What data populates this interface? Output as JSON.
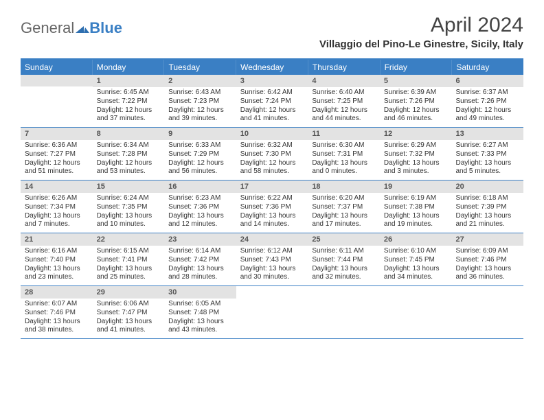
{
  "brand": {
    "part1": "General",
    "part2": "Blue"
  },
  "title": "April 2024",
  "location": "Villaggio del Pino-Le Ginestre, Sicily, Italy",
  "colors": {
    "accent": "#3a7fc4",
    "daybar": "#e3e3e3",
    "text": "#333333"
  },
  "weekdays": [
    "Sunday",
    "Monday",
    "Tuesday",
    "Wednesday",
    "Thursday",
    "Friday",
    "Saturday"
  ],
  "weeks": [
    [
      {
        "n": "",
        "sr": "",
        "ss": "",
        "dl": ""
      },
      {
        "n": "1",
        "sr": "Sunrise: 6:45 AM",
        "ss": "Sunset: 7:22 PM",
        "dl": "Daylight: 12 hours and 37 minutes."
      },
      {
        "n": "2",
        "sr": "Sunrise: 6:43 AM",
        "ss": "Sunset: 7:23 PM",
        "dl": "Daylight: 12 hours and 39 minutes."
      },
      {
        "n": "3",
        "sr": "Sunrise: 6:42 AM",
        "ss": "Sunset: 7:24 PM",
        "dl": "Daylight: 12 hours and 41 minutes."
      },
      {
        "n": "4",
        "sr": "Sunrise: 6:40 AM",
        "ss": "Sunset: 7:25 PM",
        "dl": "Daylight: 12 hours and 44 minutes."
      },
      {
        "n": "5",
        "sr": "Sunrise: 6:39 AM",
        "ss": "Sunset: 7:26 PM",
        "dl": "Daylight: 12 hours and 46 minutes."
      },
      {
        "n": "6",
        "sr": "Sunrise: 6:37 AM",
        "ss": "Sunset: 7:26 PM",
        "dl": "Daylight: 12 hours and 49 minutes."
      }
    ],
    [
      {
        "n": "7",
        "sr": "Sunrise: 6:36 AM",
        "ss": "Sunset: 7:27 PM",
        "dl": "Daylight: 12 hours and 51 minutes."
      },
      {
        "n": "8",
        "sr": "Sunrise: 6:34 AM",
        "ss": "Sunset: 7:28 PM",
        "dl": "Daylight: 12 hours and 53 minutes."
      },
      {
        "n": "9",
        "sr": "Sunrise: 6:33 AM",
        "ss": "Sunset: 7:29 PM",
        "dl": "Daylight: 12 hours and 56 minutes."
      },
      {
        "n": "10",
        "sr": "Sunrise: 6:32 AM",
        "ss": "Sunset: 7:30 PM",
        "dl": "Daylight: 12 hours and 58 minutes."
      },
      {
        "n": "11",
        "sr": "Sunrise: 6:30 AM",
        "ss": "Sunset: 7:31 PM",
        "dl": "Daylight: 13 hours and 0 minutes."
      },
      {
        "n": "12",
        "sr": "Sunrise: 6:29 AM",
        "ss": "Sunset: 7:32 PM",
        "dl": "Daylight: 13 hours and 3 minutes."
      },
      {
        "n": "13",
        "sr": "Sunrise: 6:27 AM",
        "ss": "Sunset: 7:33 PM",
        "dl": "Daylight: 13 hours and 5 minutes."
      }
    ],
    [
      {
        "n": "14",
        "sr": "Sunrise: 6:26 AM",
        "ss": "Sunset: 7:34 PM",
        "dl": "Daylight: 13 hours and 7 minutes."
      },
      {
        "n": "15",
        "sr": "Sunrise: 6:24 AM",
        "ss": "Sunset: 7:35 PM",
        "dl": "Daylight: 13 hours and 10 minutes."
      },
      {
        "n": "16",
        "sr": "Sunrise: 6:23 AM",
        "ss": "Sunset: 7:36 PM",
        "dl": "Daylight: 13 hours and 12 minutes."
      },
      {
        "n": "17",
        "sr": "Sunrise: 6:22 AM",
        "ss": "Sunset: 7:36 PM",
        "dl": "Daylight: 13 hours and 14 minutes."
      },
      {
        "n": "18",
        "sr": "Sunrise: 6:20 AM",
        "ss": "Sunset: 7:37 PM",
        "dl": "Daylight: 13 hours and 17 minutes."
      },
      {
        "n": "19",
        "sr": "Sunrise: 6:19 AM",
        "ss": "Sunset: 7:38 PM",
        "dl": "Daylight: 13 hours and 19 minutes."
      },
      {
        "n": "20",
        "sr": "Sunrise: 6:18 AM",
        "ss": "Sunset: 7:39 PM",
        "dl": "Daylight: 13 hours and 21 minutes."
      }
    ],
    [
      {
        "n": "21",
        "sr": "Sunrise: 6:16 AM",
        "ss": "Sunset: 7:40 PM",
        "dl": "Daylight: 13 hours and 23 minutes."
      },
      {
        "n": "22",
        "sr": "Sunrise: 6:15 AM",
        "ss": "Sunset: 7:41 PM",
        "dl": "Daylight: 13 hours and 25 minutes."
      },
      {
        "n": "23",
        "sr": "Sunrise: 6:14 AM",
        "ss": "Sunset: 7:42 PM",
        "dl": "Daylight: 13 hours and 28 minutes."
      },
      {
        "n": "24",
        "sr": "Sunrise: 6:12 AM",
        "ss": "Sunset: 7:43 PM",
        "dl": "Daylight: 13 hours and 30 minutes."
      },
      {
        "n": "25",
        "sr": "Sunrise: 6:11 AM",
        "ss": "Sunset: 7:44 PM",
        "dl": "Daylight: 13 hours and 32 minutes."
      },
      {
        "n": "26",
        "sr": "Sunrise: 6:10 AM",
        "ss": "Sunset: 7:45 PM",
        "dl": "Daylight: 13 hours and 34 minutes."
      },
      {
        "n": "27",
        "sr": "Sunrise: 6:09 AM",
        "ss": "Sunset: 7:46 PM",
        "dl": "Daylight: 13 hours and 36 minutes."
      }
    ],
    [
      {
        "n": "28",
        "sr": "Sunrise: 6:07 AM",
        "ss": "Sunset: 7:46 PM",
        "dl": "Daylight: 13 hours and 38 minutes."
      },
      {
        "n": "29",
        "sr": "Sunrise: 6:06 AM",
        "ss": "Sunset: 7:47 PM",
        "dl": "Daylight: 13 hours and 41 minutes."
      },
      {
        "n": "30",
        "sr": "Sunrise: 6:05 AM",
        "ss": "Sunset: 7:48 PM",
        "dl": "Daylight: 13 hours and 43 minutes."
      },
      {
        "n": "",
        "sr": "",
        "ss": "",
        "dl": ""
      },
      {
        "n": "",
        "sr": "",
        "ss": "",
        "dl": ""
      },
      {
        "n": "",
        "sr": "",
        "ss": "",
        "dl": ""
      },
      {
        "n": "",
        "sr": "",
        "ss": "",
        "dl": ""
      }
    ]
  ]
}
